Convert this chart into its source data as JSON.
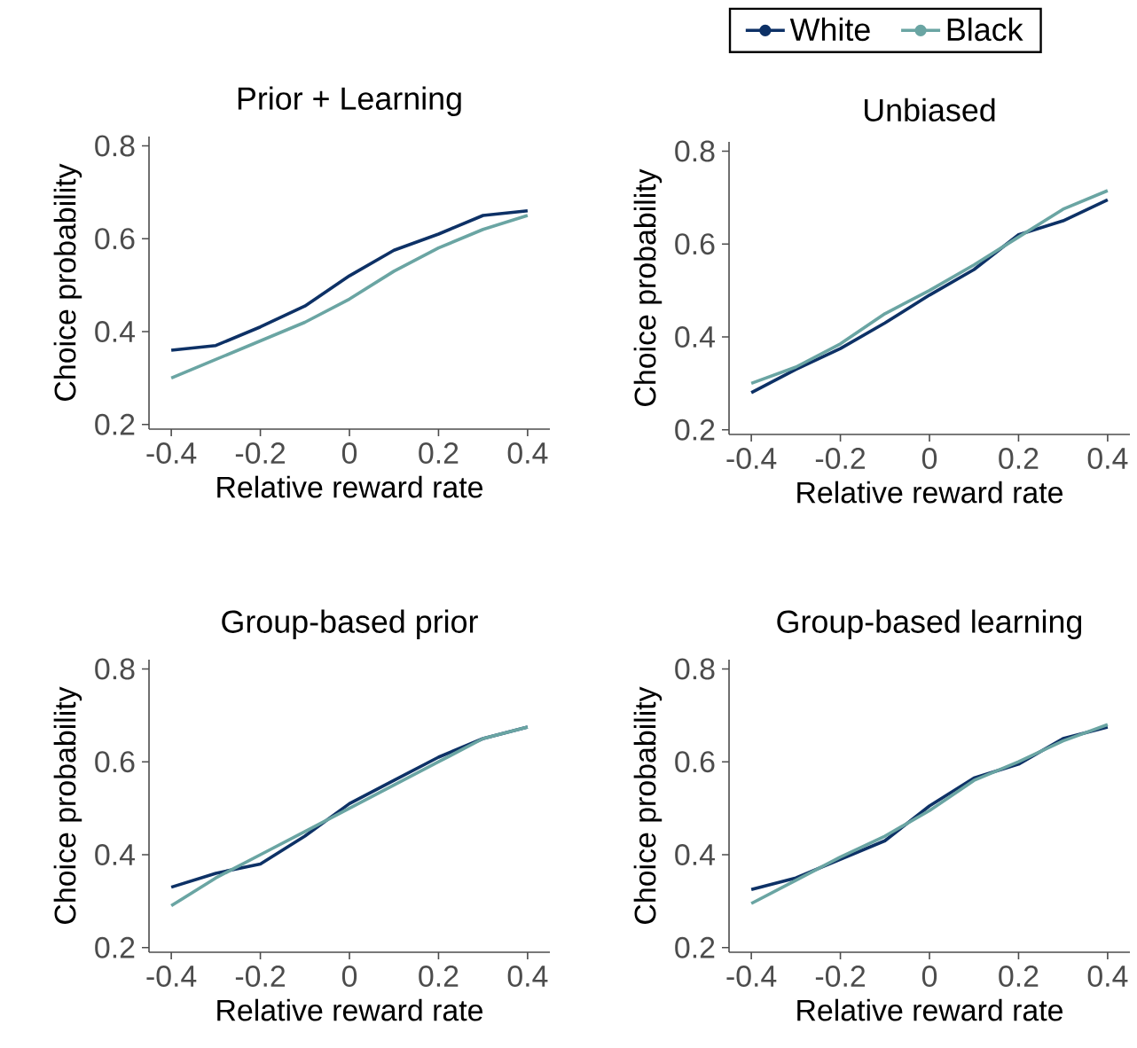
{
  "chart_data": [
    {
      "type": "line",
      "title": "Prior + Learning",
      "xlabel": "Relative reward rate",
      "ylabel": "Choice probability",
      "x": [
        -0.4,
        -0.3,
        -0.2,
        -0.1,
        0,
        0.1,
        0.2,
        0.3,
        0.4
      ],
      "xlim": [
        -0.45,
        0.45
      ],
      "ylim": [
        0.19,
        0.82
      ],
      "xticks": [
        -0.4,
        -0.2,
        0,
        0.2,
        0.4
      ],
      "yticks": [
        0.2,
        0.4,
        0.6,
        0.8
      ],
      "series": [
        {
          "color": "#0d3166",
          "values": [
            0.36,
            0.37,
            0.41,
            0.455,
            0.52,
            0.575,
            0.61,
            0.65,
            0.66
          ]
        },
        {
          "color": "#6aa5a3",
          "values": [
            0.3,
            0.34,
            0.38,
            0.42,
            0.47,
            0.53,
            0.58,
            0.62,
            0.65
          ]
        }
      ]
    },
    {
      "type": "line",
      "title": "Unbiased",
      "xlabel": "Relative reward rate",
      "ylabel": "Choice probability",
      "x": [
        -0.4,
        -0.3,
        -0.2,
        -0.1,
        0,
        0.1,
        0.2,
        0.3,
        0.4
      ],
      "xlim": [
        -0.45,
        0.45
      ],
      "ylim": [
        0.19,
        0.82
      ],
      "xticks": [
        -0.4,
        -0.2,
        0,
        0.2,
        0.4
      ],
      "yticks": [
        0.2,
        0.4,
        0.6,
        0.8
      ],
      "legend": "top",
      "series": [
        {
          "name": "White",
          "color": "#0d3166",
          "values": [
            0.28,
            0.33,
            0.375,
            0.43,
            0.49,
            0.545,
            0.62,
            0.65,
            0.695
          ]
        },
        {
          "name": "Black",
          "color": "#6aa5a3",
          "values": [
            0.3,
            0.335,
            0.385,
            0.45,
            0.5,
            0.555,
            0.615,
            0.675,
            0.715
          ]
        }
      ]
    },
    {
      "type": "line",
      "title": "Group-based prior",
      "xlabel": "Relative reward rate",
      "ylabel": "Choice probability",
      "x": [
        -0.4,
        -0.3,
        -0.2,
        -0.1,
        0,
        0.1,
        0.2,
        0.3,
        0.4
      ],
      "xlim": [
        -0.45,
        0.45
      ],
      "ylim": [
        0.19,
        0.82
      ],
      "xticks": [
        -0.4,
        -0.2,
        0,
        0.2,
        0.4
      ],
      "yticks": [
        0.2,
        0.4,
        0.6,
        0.8
      ],
      "series": [
        {
          "color": "#0d3166",
          "values": [
            0.33,
            0.36,
            0.38,
            0.44,
            0.51,
            0.56,
            0.61,
            0.65,
            0.675
          ]
        },
        {
          "color": "#6aa5a3",
          "values": [
            0.29,
            0.35,
            0.4,
            0.45,
            0.5,
            0.55,
            0.6,
            0.65,
            0.675
          ]
        }
      ]
    },
    {
      "type": "line",
      "title": "Group-based learning",
      "xlabel": "Relative reward rate",
      "ylabel": "Choice probability",
      "x": [
        -0.4,
        -0.3,
        -0.2,
        -0.1,
        0,
        0.1,
        0.2,
        0.3,
        0.4
      ],
      "xlim": [
        -0.45,
        0.45
      ],
      "ylim": [
        0.19,
        0.82
      ],
      "xticks": [
        -0.4,
        -0.2,
        0,
        0.2,
        0.4
      ],
      "yticks": [
        0.2,
        0.4,
        0.6,
        0.8
      ],
      "series": [
        {
          "color": "#0d3166",
          "values": [
            0.325,
            0.35,
            0.39,
            0.43,
            0.505,
            0.565,
            0.595,
            0.65,
            0.675
          ]
        },
        {
          "color": "#6aa5a3",
          "values": [
            0.295,
            0.345,
            0.395,
            0.44,
            0.495,
            0.56,
            0.6,
            0.645,
            0.68
          ]
        }
      ]
    }
  ]
}
